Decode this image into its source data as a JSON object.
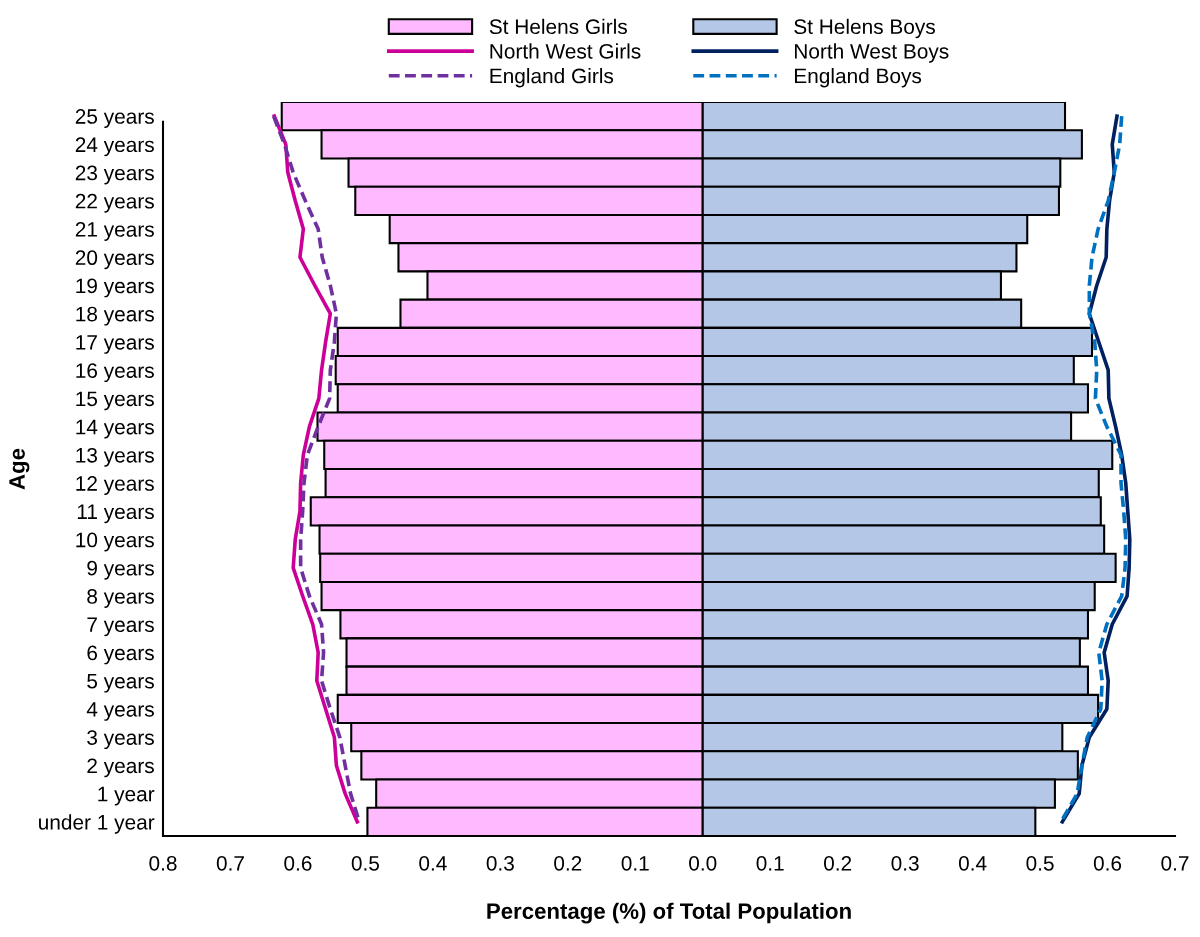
{
  "chart_data": {
    "type": "bar",
    "orientation": "horizontal",
    "xlabel": "Percentage (%) of Total Population",
    "ylabel": "Age",
    "categories": [
      "25 years",
      "24 years",
      "23 years",
      "22 years",
      "21 years",
      "20 years",
      "19 years",
      "18 years",
      "17 years",
      "16 years",
      "15 years",
      "14 years",
      "13 years",
      "12 years",
      "11 years",
      "10 years",
      "9 years",
      "8 years",
      "7 years",
      "6 years",
      "5 years",
      "4 years",
      "3 years",
      "2 years",
      "1 year",
      "under 1 year"
    ],
    "series": [
      {
        "name": "St Helens Girls",
        "color": "#ffb9ff",
        "values": [
          -0.624,
          -0.565,
          -0.525,
          -0.515,
          -0.464,
          -0.451,
          -0.408,
          -0.448,
          -0.541,
          -0.544,
          -0.541,
          -0.571,
          -0.561,
          -0.559,
          -0.581,
          -0.568,
          -0.567,
          -0.565,
          -0.537,
          -0.528,
          -0.528,
          -0.541,
          -0.521,
          -0.506,
          -0.484,
          -0.497
        ]
      },
      {
        "name": "North West Girls",
        "type": "line",
        "color": "#cc0099",
        "line_style": "solid",
        "values": [
          -0.635,
          -0.618,
          -0.615,
          -0.604,
          -0.592,
          -0.597,
          -0.575,
          -0.552,
          -0.559,
          -0.565,
          -0.569,
          -0.583,
          -0.592,
          -0.596,
          -0.597,
          -0.604,
          -0.607,
          -0.593,
          -0.578,
          -0.57,
          -0.572,
          -0.559,
          -0.546,
          -0.543,
          -0.53,
          -0.512
        ]
      },
      {
        "name": "England Girls",
        "type": "line",
        "color": "#7030a0",
        "line_style": "dashed",
        "values": [
          -0.636,
          -0.62,
          -0.607,
          -0.589,
          -0.57,
          -0.564,
          -0.552,
          -0.543,
          -0.546,
          -0.552,
          -0.553,
          -0.57,
          -0.586,
          -0.591,
          -0.593,
          -0.596,
          -0.596,
          -0.583,
          -0.565,
          -0.562,
          -0.565,
          -0.552,
          -0.538,
          -0.53,
          -0.522,
          -0.509
        ]
      },
      {
        "name": "St Helens Boys",
        "color": "#b4c7e7",
        "values": [
          0.537,
          0.562,
          0.53,
          0.528,
          0.481,
          0.465,
          0.442,
          0.472,
          0.577,
          0.55,
          0.571,
          0.546,
          0.607,
          0.587,
          0.59,
          0.595,
          0.612,
          0.581,
          0.571,
          0.559,
          0.571,
          0.586,
          0.533,
          0.556,
          0.522,
          0.493
        ]
      },
      {
        "name": "North West Boys",
        "type": "line",
        "color": "#002060",
        "line_style": "solid",
        "values": [
          0.614,
          0.607,
          0.61,
          0.603,
          0.599,
          0.598,
          0.584,
          0.573,
          0.587,
          0.601,
          0.602,
          0.612,
          0.621,
          0.627,
          0.63,
          0.633,
          0.632,
          0.629,
          0.607,
          0.595,
          0.601,
          0.599,
          0.573,
          0.562,
          0.558,
          0.533
        ]
      },
      {
        "name": "England Boys",
        "type": "line",
        "color": "#0070c0",
        "line_style": "dashed",
        "values": [
          0.621,
          0.618,
          0.61,
          0.601,
          0.586,
          0.577,
          0.573,
          0.573,
          0.581,
          0.584,
          0.582,
          0.599,
          0.62,
          0.62,
          0.624,
          0.627,
          0.626,
          0.621,
          0.599,
          0.587,
          0.592,
          0.59,
          0.57,
          0.562,
          0.555,
          0.531
        ]
      }
    ],
    "xlim": [
      -0.8,
      0.7
    ],
    "xticks": [
      {
        "value": -0.8,
        "label": "0.8"
      },
      {
        "value": -0.7,
        "label": "0.7"
      },
      {
        "value": -0.6,
        "label": "0.6"
      },
      {
        "value": -0.5,
        "label": "0.5"
      },
      {
        "value": -0.4,
        "label": "0.4"
      },
      {
        "value": -0.3,
        "label": "0.3"
      },
      {
        "value": -0.2,
        "label": "0.2"
      },
      {
        "value": -0.1,
        "label": "0.1"
      },
      {
        "value": 0,
        "label": "0.0"
      },
      0.1,
      0.2,
      0.3,
      0.4,
      0.5,
      0.6,
      0.7
    ],
    "legend": "top",
    "grid": false,
    "stacked": true
  }
}
